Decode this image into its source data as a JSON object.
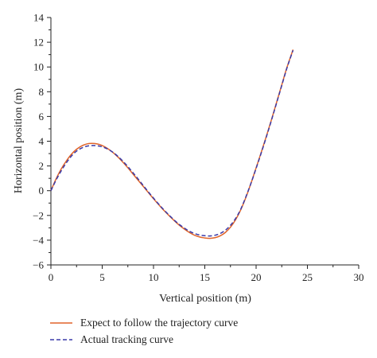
{
  "chart_data": {
    "type": "line",
    "title": "",
    "xlabel": "Vertical position (m)",
    "ylabel": "Horizontal position (m)",
    "xlim": [
      0,
      30
    ],
    "ylim": [
      -6,
      14
    ],
    "xticks": [
      0,
      5,
      10,
      15,
      20,
      25,
      30
    ],
    "yticks": [
      -6,
      -4,
      -2,
      0,
      2,
      4,
      6,
      8,
      10,
      12,
      14
    ],
    "grid": false,
    "legend_position": "bottom-left",
    "series": [
      {
        "name": "Expect to follow the trajectory curve",
        "color": "#e0642a",
        "dash": "solid",
        "x": [
          0,
          0.5,
          1,
          1.5,
          2,
          2.5,
          3,
          3.5,
          4,
          4.5,
          5,
          5.5,
          6,
          6.5,
          7,
          7.5,
          8,
          8.5,
          9,
          9.5,
          10,
          10.5,
          11,
          11.5,
          12,
          12.5,
          13,
          13.5,
          14,
          14.5,
          15,
          15.5,
          16,
          16.5,
          17,
          17.5,
          18,
          18.5,
          19,
          19.5,
          20,
          20.5,
          21,
          21.5,
          22,
          22.5,
          23,
          23.6
        ],
        "y": [
          0,
          0.95,
          1.75,
          2.4,
          2.95,
          3.35,
          3.62,
          3.78,
          3.82,
          3.78,
          3.65,
          3.42,
          3.12,
          2.75,
          2.32,
          1.85,
          1.35,
          0.85,
          0.35,
          -0.15,
          -0.65,
          -1.12,
          -1.58,
          -2.0,
          -2.4,
          -2.78,
          -3.1,
          -3.38,
          -3.6,
          -3.74,
          -3.82,
          -3.85,
          -3.8,
          -3.65,
          -3.38,
          -2.95,
          -2.35,
          -1.55,
          -0.55,
          0.6,
          1.85,
          3.1,
          4.4,
          5.75,
          7.15,
          8.55,
          9.95,
          11.4
        ]
      },
      {
        "name": "Actual tracking curve",
        "color": "#3a3aa8",
        "dash": "dashed",
        "x": [
          0,
          0.5,
          1,
          1.5,
          2,
          2.5,
          3,
          3.5,
          4,
          4.5,
          5,
          5.5,
          6,
          6.5,
          7,
          7.5,
          8,
          8.5,
          9,
          9.5,
          10,
          10.5,
          11,
          11.5,
          12,
          12.5,
          13,
          13.5,
          14,
          14.5,
          15,
          15.5,
          16,
          16.5,
          17,
          17.5,
          18,
          18.5,
          19,
          19.5,
          20,
          20.5,
          21,
          21.5,
          22,
          22.5,
          23,
          23.6
        ],
        "y": [
          0,
          0.85,
          1.6,
          2.25,
          2.8,
          3.2,
          3.45,
          3.6,
          3.65,
          3.63,
          3.55,
          3.38,
          3.13,
          2.8,
          2.4,
          1.95,
          1.45,
          0.95,
          0.42,
          -0.1,
          -0.6,
          -1.08,
          -1.54,
          -1.96,
          -2.36,
          -2.72,
          -3.02,
          -3.28,
          -3.46,
          -3.58,
          -3.64,
          -3.66,
          -3.6,
          -3.46,
          -3.2,
          -2.8,
          -2.25,
          -1.5,
          -0.5,
          0.6,
          1.8,
          3.05,
          4.35,
          5.7,
          7.1,
          8.5,
          9.9,
          11.35
        ]
      }
    ]
  }
}
